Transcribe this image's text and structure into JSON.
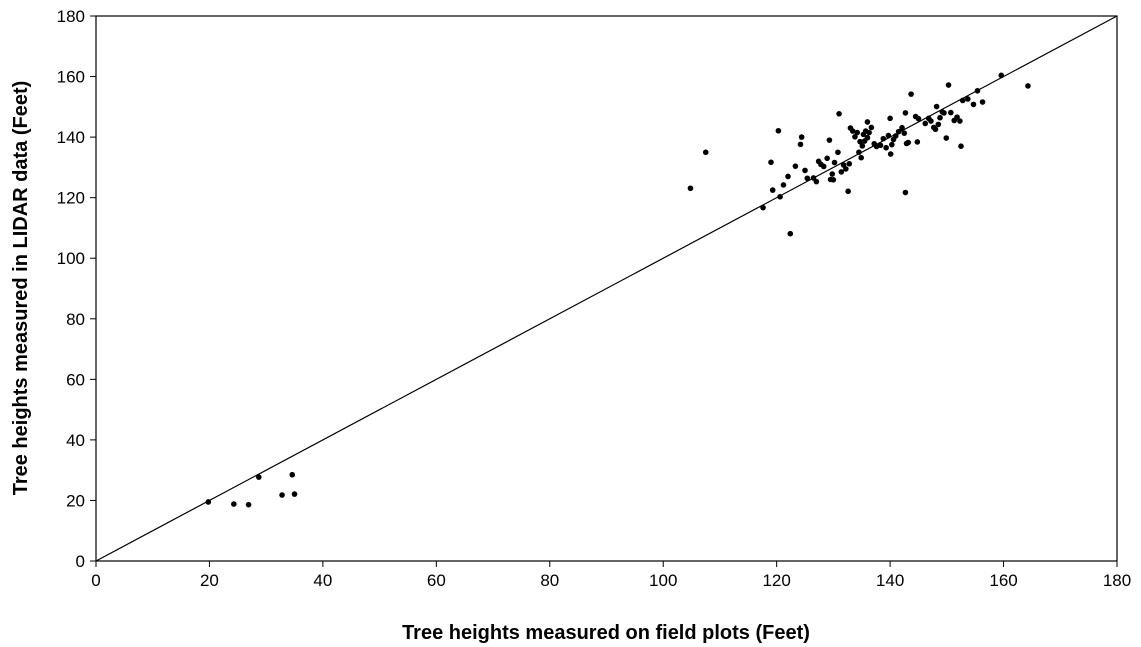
{
  "chart_data": {
    "type": "scatter",
    "title": "",
    "xlabel": "Tree heights measured on field plots (Feet)",
    "ylabel": "Tree heights measured in LIDAR data (Feet)",
    "xlim": [
      0,
      180
    ],
    "ylim": [
      0,
      180
    ],
    "xticks": [
      0,
      20,
      40,
      60,
      80,
      100,
      120,
      140,
      160,
      180
    ],
    "yticks": [
      0,
      20,
      40,
      60,
      80,
      100,
      120,
      140,
      160,
      180
    ],
    "grid": false,
    "legend": "none",
    "reference_line": {
      "from": [
        0,
        0
      ],
      "to": [
        180,
        180
      ]
    },
    "marker_color": "#000000",
    "series": [
      {
        "points": [
          [
            19.8,
            19.5
          ],
          [
            24.3,
            18.8
          ],
          [
            26.9,
            18.6
          ],
          [
            28.7,
            27.7
          ],
          [
            32.8,
            21.8
          ],
          [
            34.6,
            28.5
          ],
          [
            35.0,
            22.1
          ],
          [
            104.8,
            123.1
          ],
          [
            107.5,
            135.0
          ],
          [
            117.6,
            116.7
          ],
          [
            119.0,
            131.7
          ],
          [
            119.3,
            122.5
          ],
          [
            120.3,
            142.1
          ],
          [
            120.6,
            120.3
          ],
          [
            121.2,
            124.2
          ],
          [
            122.0,
            127.0
          ],
          [
            122.4,
            108.1
          ],
          [
            123.3,
            130.4
          ],
          [
            124.2,
            137.6
          ],
          [
            124.4,
            140.0
          ],
          [
            125.0,
            129.0
          ],
          [
            125.4,
            126.4
          ],
          [
            126.5,
            126.5
          ],
          [
            127.0,
            125.3
          ],
          [
            127.4,
            132.0
          ],
          [
            127.8,
            131.0
          ],
          [
            128.3,
            130.3
          ],
          [
            128.9,
            133.0
          ],
          [
            129.3,
            139.0
          ],
          [
            129.5,
            126.0
          ],
          [
            129.8,
            127.8
          ],
          [
            130.0,
            125.9
          ],
          [
            130.2,
            131.6
          ],
          [
            130.8,
            135.0
          ],
          [
            131.0,
            147.7
          ],
          [
            131.4,
            128.5
          ],
          [
            131.8,
            130.8
          ],
          [
            132.2,
            129.5
          ],
          [
            132.6,
            122.1
          ],
          [
            132.8,
            131.2
          ],
          [
            133.0,
            143.0
          ],
          [
            133.4,
            142.0
          ],
          [
            133.8,
            140.1
          ],
          [
            134.2,
            141.5
          ],
          [
            134.5,
            135.0
          ],
          [
            134.7,
            138.5
          ],
          [
            134.9,
            133.2
          ],
          [
            135.1,
            137.1
          ],
          [
            135.3,
            140.9
          ],
          [
            135.5,
            138.7
          ],
          [
            135.7,
            142.0
          ],
          [
            136.0,
            139.8
          ],
          [
            136.0,
            145.0
          ],
          [
            136.3,
            141.5
          ],
          [
            136.7,
            143.2
          ],
          [
            137.2,
            137.8
          ],
          [
            137.6,
            136.9
          ],
          [
            138.3,
            137.3
          ],
          [
            138.8,
            139.5
          ],
          [
            139.3,
            136.5
          ],
          [
            139.7,
            140.5
          ],
          [
            140.0,
            146.2
          ],
          [
            140.1,
            134.4
          ],
          [
            140.3,
            137.5
          ],
          [
            140.6,
            139.2
          ],
          [
            141.0,
            140.4
          ],
          [
            141.5,
            141.8
          ],
          [
            142.1,
            143.1
          ],
          [
            142.5,
            141.3
          ],
          [
            142.7,
            148.0
          ],
          [
            142.7,
            121.7
          ],
          [
            142.9,
            137.9
          ],
          [
            143.2,
            138.2
          ],
          [
            143.7,
            154.2
          ],
          [
            144.5,
            146.8
          ],
          [
            144.8,
            138.4
          ],
          [
            145.0,
            146.1
          ],
          [
            146.2,
            144.5
          ],
          [
            146.8,
            146.2
          ],
          [
            147.2,
            145.3
          ],
          [
            147.7,
            143.2
          ],
          [
            148.0,
            142.6
          ],
          [
            148.2,
            150.1
          ],
          [
            148.5,
            144.2
          ],
          [
            148.8,
            146.4
          ],
          [
            149.2,
            148.3
          ],
          [
            149.5,
            148.0
          ],
          [
            149.9,
            139.7
          ],
          [
            150.3,
            157.2
          ],
          [
            150.7,
            148.1
          ],
          [
            151.3,
            145.5
          ],
          [
            151.8,
            146.6
          ],
          [
            152.3,
            145.3
          ],
          [
            152.5,
            137.0
          ],
          [
            152.8,
            152.1
          ],
          [
            153.7,
            152.6
          ],
          [
            154.7,
            150.8
          ],
          [
            155.4,
            155.3
          ],
          [
            156.3,
            151.6
          ],
          [
            159.6,
            160.4
          ],
          [
            164.3,
            156.9
          ]
        ]
      }
    ]
  }
}
